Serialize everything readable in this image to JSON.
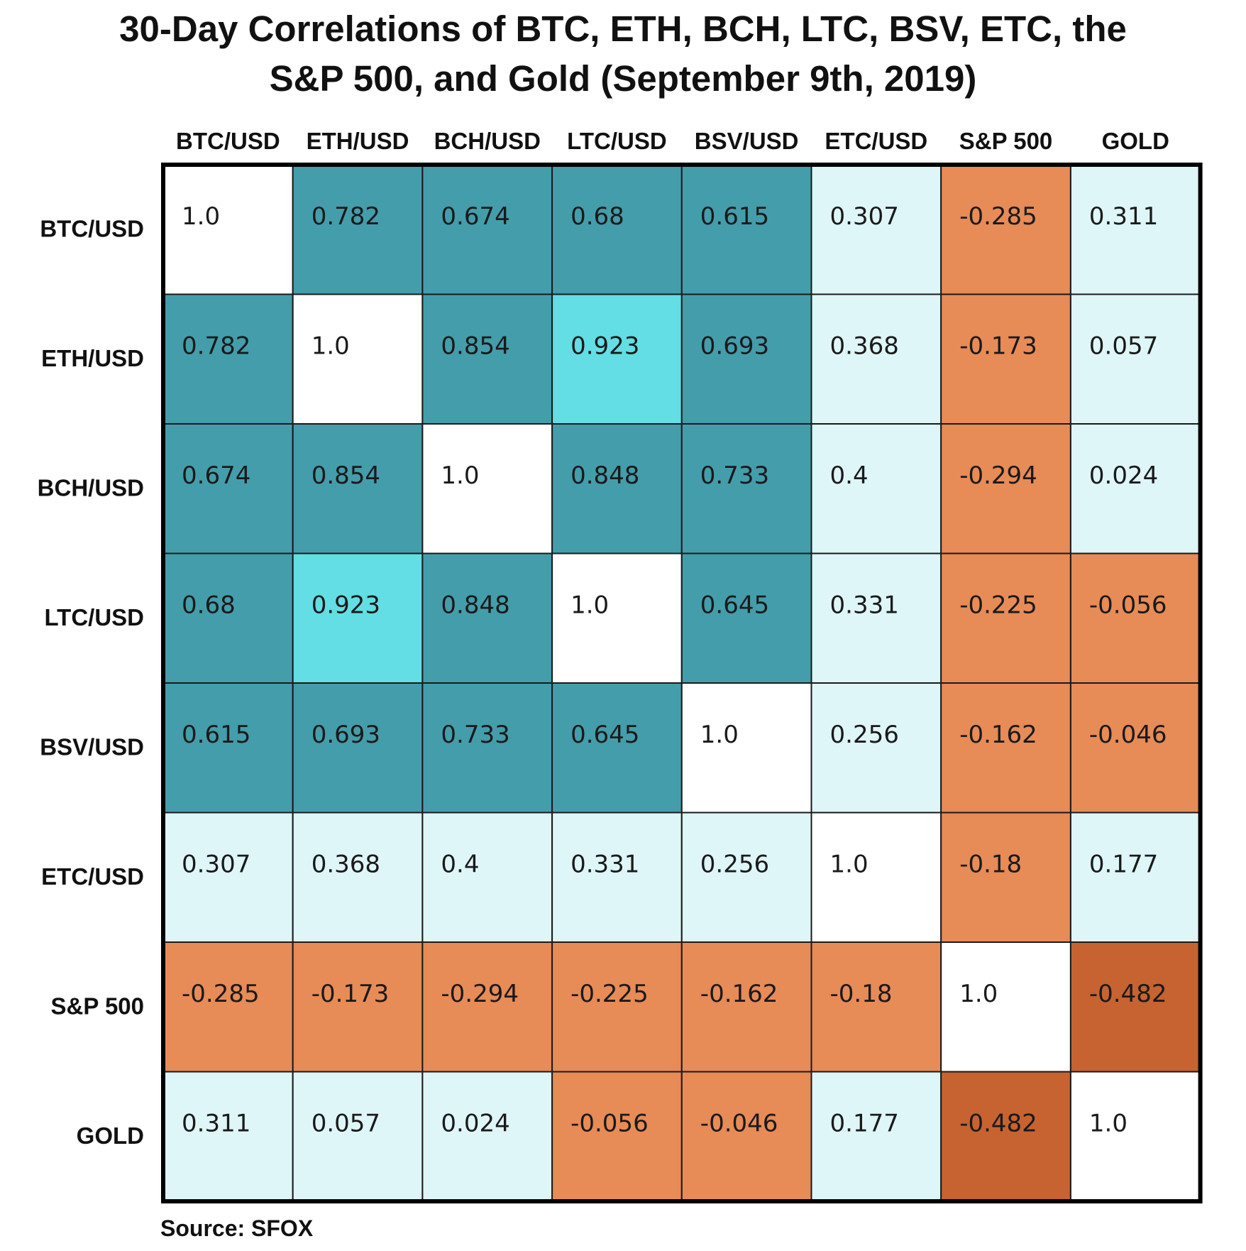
{
  "chart_data": {
    "type": "heatmap",
    "title_lines": [
      "30-Day Correlations of BTC, ETH, BCH, LTC, BSV, ETC, the",
      "S&P 500, and Gold (September 9th, 2019)"
    ],
    "columns": [
      "BTC/USD",
      "ETH/USD",
      "BCH/USD",
      "LTC/USD",
      "BSV/USD",
      "ETC/USD",
      "S&P 500",
      "GOLD"
    ],
    "rows": [
      "BTC/USD",
      "ETH/USD",
      "BCH/USD",
      "LTC/USD",
      "BSV/USD",
      "ETC/USD",
      "S&P 500",
      "GOLD"
    ],
    "values": [
      [
        "1.0",
        "0.782",
        "0.674",
        "0.68",
        "0.615",
        "0.307",
        "-0.285",
        "0.311"
      ],
      [
        "0.782",
        "1.0",
        "0.854",
        "0.923",
        "0.693",
        "0.368",
        "-0.173",
        "0.057"
      ],
      [
        "0.674",
        "0.854",
        "1.0",
        "0.848",
        "0.733",
        "0.4",
        "-0.294",
        "0.024"
      ],
      [
        "0.68",
        "0.923",
        "0.848",
        "1.0",
        "0.645",
        "0.331",
        "-0.225",
        "-0.056"
      ],
      [
        "0.615",
        "0.693",
        "0.733",
        "0.645",
        "1.0",
        "0.256",
        "-0.162",
        "-0.046"
      ],
      [
        "0.307",
        "0.368",
        "0.4",
        "0.331",
        "0.256",
        "1.0",
        "-0.18",
        "0.177"
      ],
      [
        "-0.285",
        "-0.173",
        "-0.294",
        "-0.225",
        "-0.162",
        "-0.18",
        "1.0",
        "-0.482"
      ],
      [
        "0.311",
        "0.057",
        "0.024",
        "-0.056",
        "-0.046",
        "0.177",
        "-0.482",
        "1.0"
      ]
    ],
    "colors": {
      "diagonal": "#ffffff",
      "strong_positive": "#62dee4",
      "moderate_positive": "#449dab",
      "weak_positive": "#dff6f8",
      "weak_negative": "#e78b57",
      "moderate_negative": "#c66330",
      "grid_line": "#1a1a1a",
      "border": "#000000"
    },
    "source": "Source: SFOX"
  }
}
